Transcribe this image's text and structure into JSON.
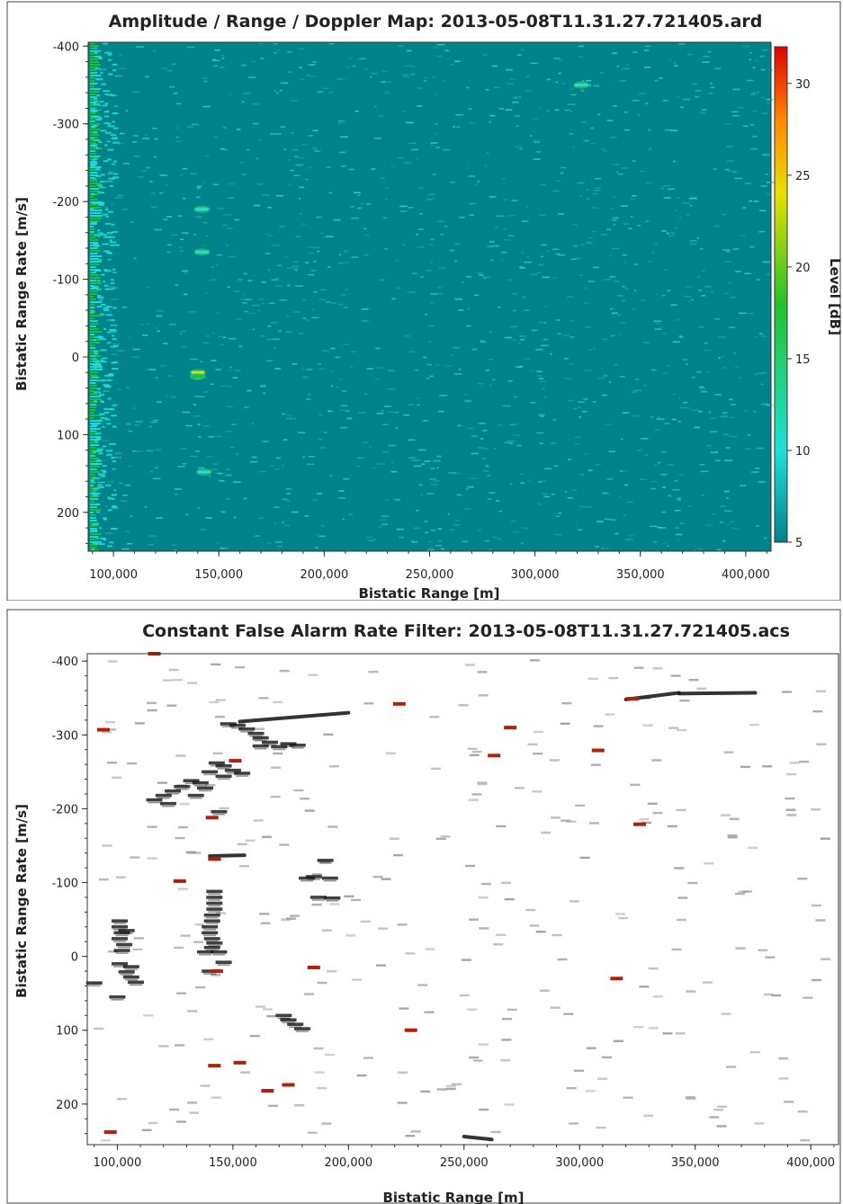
{
  "chart_data": [
    {
      "type": "heatmap",
      "title": "Amplitude / Range / Doppler Map:   2013-05-08T11.31.27.721405.ard",
      "xlabel": "Bistatic Range [m]",
      "ylabel": "Bistatic Range Rate [m/s]",
      "colorbar_label": "Level [dB]",
      "xlim": [
        88000,
        412000
      ],
      "ylim": [
        -405,
        250
      ],
      "y_reversed": true,
      "x_ticks": [
        100000,
        150000,
        200000,
        250000,
        300000,
        350000,
        400000
      ],
      "x_tick_labels": [
        "100,000",
        "150,000",
        "200,000",
        "250,000",
        "300,000",
        "350,000",
        "400,000"
      ],
      "y_ticks": [
        -400,
        -300,
        -200,
        -100,
        0,
        100,
        200
      ],
      "y_tick_labels": [
        "-400",
        "-300",
        "-200",
        "-100",
        "0",
        "100",
        "200"
      ],
      "colorbar_ticks": [
        5,
        10,
        15,
        20,
        25,
        30
      ],
      "colorbar_range": [
        5,
        32
      ],
      "background_level": 6,
      "colors": {
        "low": "#00838a",
        "mid": "#1fe0d8",
        "green": "#22c22a",
        "yellow": "#e8e000",
        "orange": "#ff8800",
        "high": "#e00000"
      },
      "hotspots": [
        {
          "x": 142000,
          "y": -190,
          "level": 14
        },
        {
          "x": 142000,
          "y": -135,
          "level": 17
        },
        {
          "x": 140000,
          "y": 20,
          "level": 25
        },
        {
          "x": 140000,
          "y": 25,
          "level": 22
        },
        {
          "x": 143000,
          "y": 148,
          "level": 16
        },
        {
          "x": 322000,
          "y": -350,
          "level": 14
        }
      ]
    },
    {
      "type": "scatter",
      "title": "Constant False Alarm Rate Filter: 2013-05-08T11.31.27.721405.acs",
      "xlabel": "Bistatic Range [m]",
      "ylabel": "Bistatic Range Rate [m/s]",
      "xlim": [
        87000,
        412000
      ],
      "ylim": [
        -410,
        255
      ],
      "y_reversed": true,
      "x_ticks": [
        100000,
        150000,
        200000,
        250000,
        300000,
        350000,
        400000
      ],
      "x_tick_labels": [
        "100,000",
        "150,000",
        "200,000",
        "250,000",
        "300,000",
        "350,000",
        "400,000"
      ],
      "y_ticks": [
        -400,
        -300,
        -200,
        -100,
        0,
        100,
        200
      ],
      "y_tick_labels": [
        "-400",
        "-300",
        "-200",
        "-100",
        "0",
        "100",
        "200"
      ],
      "colors": {
        "detection": "#111111",
        "faint": "#9a9a9a",
        "red": "#b0200a"
      },
      "tracks": [
        {
          "x0": 153000,
          "y0": -318,
          "x1": 200000,
          "y1": -330
        },
        {
          "x0": 320000,
          "y0": -348,
          "x1": 343000,
          "y1": -357
        },
        {
          "x0": 343000,
          "y0": -356,
          "x1": 376000,
          "y1": -357
        },
        {
          "x0": 140000,
          "y0": -136,
          "x1": 155000,
          "y1": -137
        },
        {
          "x0": 250000,
          "y0": 244,
          "x1": 262000,
          "y1": 248
        }
      ],
      "strong_detections": [
        [
          148000,
          -315
        ],
        [
          152000,
          -313
        ],
        [
          156000,
          -308
        ],
        [
          160000,
          -302
        ],
        [
          162000,
          -296
        ],
        [
          166000,
          -290
        ],
        [
          170000,
          -284
        ],
        [
          174000,
          -288
        ],
        [
          178000,
          -286
        ],
        [
          162000,
          -285
        ],
        [
          143000,
          -262
        ],
        [
          146000,
          -258
        ],
        [
          150000,
          -252
        ],
        [
          154000,
          -248
        ],
        [
          140000,
          -250
        ],
        [
          146000,
          -244
        ],
        [
          132000,
          -238
        ],
        [
          136000,
          -235
        ],
        [
          128000,
          -230
        ],
        [
          124000,
          -224
        ],
        [
          120000,
          -218
        ],
        [
          116000,
          -212
        ],
        [
          122000,
          -207
        ],
        [
          138000,
          -228
        ],
        [
          134000,
          -218
        ],
        [
          144000,
          -196
        ],
        [
          190000,
          -130
        ],
        [
          185000,
          -108
        ],
        [
          192000,
          -106
        ],
        [
          182000,
          -106
        ],
        [
          187000,
          -80
        ],
        [
          193000,
          -79
        ],
        [
          142000,
          -88
        ],
        [
          142000,
          -80
        ],
        [
          142000,
          -72
        ],
        [
          142000,
          -64
        ],
        [
          141000,
          -56
        ],
        [
          141000,
          -48
        ],
        [
          140000,
          -40
        ],
        [
          140000,
          -32
        ],
        [
          141000,
          -24
        ],
        [
          142000,
          -18
        ],
        [
          141000,
          -12
        ],
        [
          138000,
          -6
        ],
        [
          144000,
          -6
        ],
        [
          140000,
          20
        ],
        [
          146000,
          8
        ],
        [
          101000,
          -48
        ],
        [
          101000,
          -40
        ],
        [
          102000,
          -32
        ],
        [
          101000,
          -24
        ],
        [
          103000,
          -16
        ],
        [
          102000,
          -8
        ],
        [
          101000,
          10
        ],
        [
          104000,
          -35
        ],
        [
          106000,
          14
        ],
        [
          104000,
          21
        ],
        [
          106000,
          28
        ],
        [
          108000,
          35
        ],
        [
          100000,
          55
        ],
        [
          90000,
          36
        ],
        [
          172000,
          80
        ],
        [
          174000,
          86
        ],
        [
          177000,
          92
        ],
        [
          180000,
          98
        ]
      ],
      "red_detections": [
        [
          94000,
          -307
        ],
        [
          116000,
          -410
        ],
        [
          222000,
          -342
        ],
        [
          270000,
          -310
        ],
        [
          263000,
          -272
        ],
        [
          308000,
          -279
        ],
        [
          151000,
          -265
        ],
        [
          141000,
          -188
        ],
        [
          142000,
          -132
        ],
        [
          127000,
          -102
        ],
        [
          143000,
          20
        ],
        [
          185000,
          15
        ],
        [
          227000,
          100
        ],
        [
          142000,
          148
        ],
        [
          153000,
          144
        ],
        [
          165000,
          182
        ],
        [
          174000,
          174
        ],
        [
          97000,
          238
        ],
        [
          326000,
          -179
        ],
        [
          316000,
          30
        ],
        [
          323000,
          -349
        ]
      ],
      "faint_count": 310
    }
  ]
}
